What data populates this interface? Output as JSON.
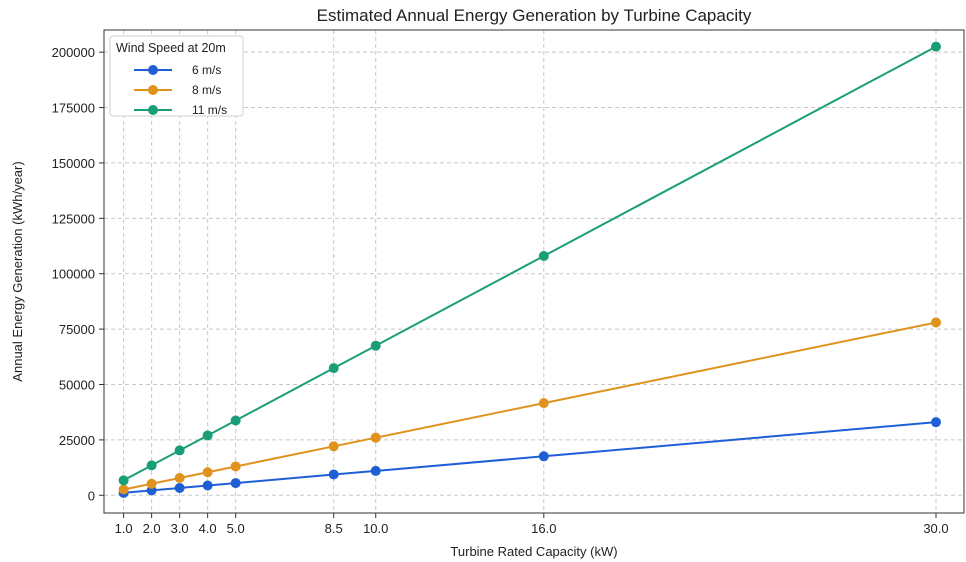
{
  "chart_data": {
    "type": "line",
    "title": "Estimated Annual Energy Generation by Turbine Capacity",
    "xlabel": "Turbine Rated Capacity (kW)",
    "ylabel": "Annual Energy Generation (kWh/year)",
    "x": [
      1.0,
      2.0,
      3.0,
      4.0,
      5.0,
      8.5,
      10.0,
      16.0,
      30.0
    ],
    "x_tick_labels": [
      "1.0",
      "2.0",
      "3.0",
      "4.0",
      "5.0",
      "8.5",
      "10.0",
      "16.0",
      "30.0"
    ],
    "ylim": [
      -8000,
      210000
    ],
    "y_ticks": [
      0,
      25000,
      50000,
      75000,
      100000,
      125000,
      150000,
      175000,
      200000
    ],
    "y_tick_labels": [
      "0",
      "25000",
      "50000",
      "75000",
      "100000",
      "125000",
      "150000",
      "175000",
      "200000"
    ],
    "grid": true,
    "legend": {
      "title": "Wind Speed at 20m",
      "placement": "top-left"
    },
    "series": [
      {
        "name": "6 m/s",
        "color": "#1f5fd6",
        "values": [
          1100,
          2200,
          3300,
          4400,
          5500,
          9400,
          11000,
          17600,
          33000
        ]
      },
      {
        "name": "8 m/s",
        "color": "#e0921c",
        "values": [
          2600,
          5200,
          7800,
          10400,
          13000,
          22100,
          26000,
          41600,
          78000
        ]
      },
      {
        "name": "11 m/s",
        "color": "#1a9e77",
        "values": [
          6750,
          13500,
          20250,
          27000,
          33750,
          57400,
          67500,
          108000,
          202500
        ]
      }
    ]
  }
}
